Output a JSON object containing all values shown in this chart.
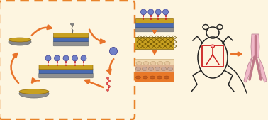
{
  "background_color": "#fdf5e0",
  "box_color": "#e8832a",
  "arrow_color": "#e8732a",
  "stent_colors": {
    "gold": "#c8a020",
    "blue": "#4a6ab0",
    "gray": "#909090",
    "gray_dark": "#707070",
    "exosome": "#7080c8",
    "exo_edge": "#404090",
    "spike": "#cc2020"
  }
}
